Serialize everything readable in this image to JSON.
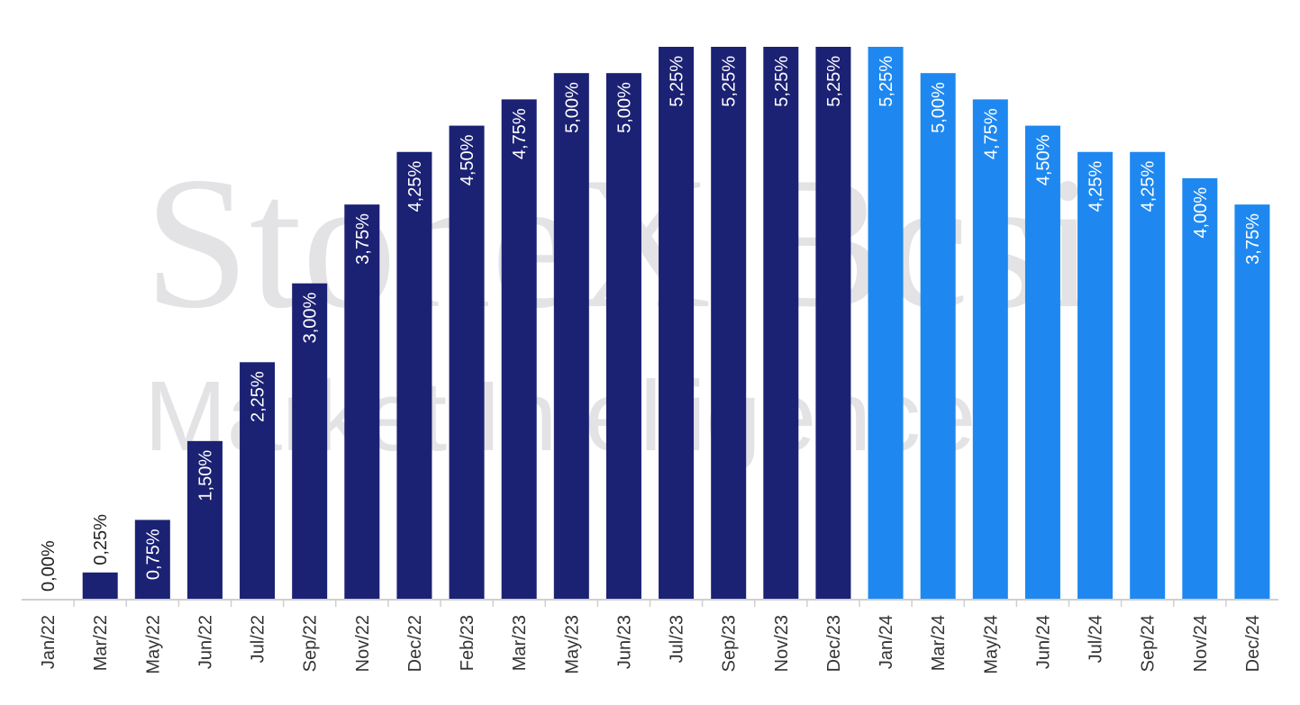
{
  "chart_data": {
    "type": "bar",
    "title": "",
    "xlabel": "",
    "ylabel": "",
    "ylim": [
      0,
      5.25
    ],
    "grid": false,
    "legend": "none",
    "categories": [
      "Jan/22",
      "Mar/22",
      "May/22",
      "Jun/22",
      "Jul/22",
      "Sep/22",
      "Nov/22",
      "Dec/22",
      "Feb/23",
      "Mar/23",
      "May/23",
      "Jun/23",
      "Jul/23",
      "Sep/23",
      "Nov/23",
      "Dec/23",
      "Jan/24",
      "Mar/24",
      "May/24",
      "Jun/24",
      "Jul/24",
      "Sep/24",
      "Nov/24",
      "Dec/24"
    ],
    "values": [
      0.0,
      0.25,
      0.75,
      1.5,
      2.25,
      3.0,
      3.75,
      4.25,
      4.5,
      4.75,
      5.0,
      5.0,
      5.25,
      5.25,
      5.25,
      5.25,
      5.25,
      5.0,
      4.75,
      4.5,
      4.25,
      4.25,
      4.0,
      3.75
    ],
    "value_labels": [
      "0,00%",
      "0,25%",
      "0,75%",
      "1,50%",
      "2,25%",
      "3,00%",
      "3,75%",
      "4,25%",
      "4,50%",
      "4,75%",
      "5,00%",
      "5,00%",
      "5,25%",
      "5,25%",
      "5,25%",
      "5,25%",
      "5,25%",
      "5,00%",
      "4,75%",
      "4,50%",
      "4,25%",
      "4,25%",
      "4,00%",
      "3,75%"
    ],
    "colors": {
      "actual": "#1b2173",
      "projection": "#1e88f0",
      "axis": "#cfcfcf"
    },
    "projection_start_index": 16
  },
  "watermark": {
    "line1": "StoneX Bcsi",
    "line2": "Market Intelligence"
  }
}
